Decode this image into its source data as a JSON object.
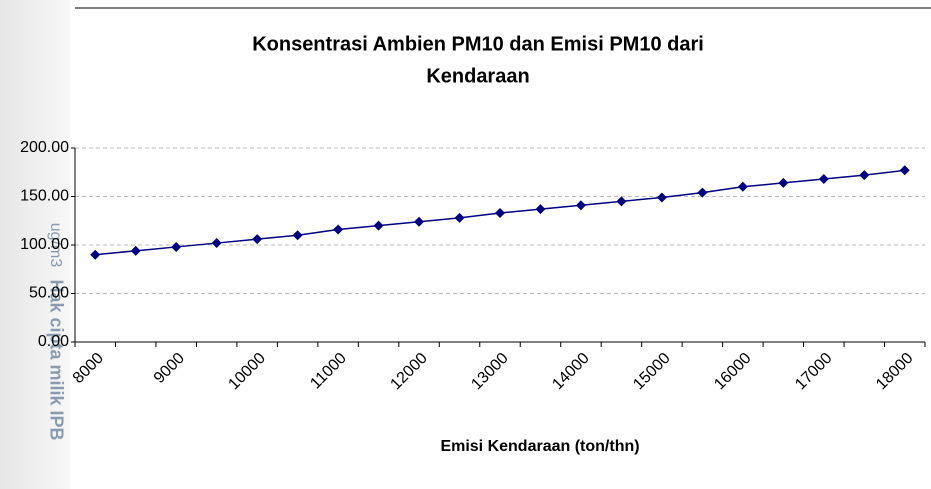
{
  "watermark": "Hak cipta milik IPB",
  "chart_data": {
    "type": "line",
    "title": [
      "Konsentrasi Ambien PM10 dan Emisi PM10 dari",
      "Kendaraan"
    ],
    "x_label": "Emisi Kendaraan (ton/thn)",
    "y_label": "ug/m3",
    "categories": [
      "8000",
      null,
      "9000",
      null,
      "10000",
      null,
      "11000",
      null,
      "12000",
      null,
      "13000",
      null,
      "14000",
      null,
      "15000",
      null,
      "16000",
      null,
      "17000",
      null,
      "18000"
    ],
    "series": [
      {
        "name": "PM10",
        "color": "#000080",
        "values": [
          90,
          94,
          98,
          102,
          106,
          110,
          116,
          120,
          124,
          128,
          133,
          137,
          141,
          145,
          149,
          154,
          160,
          164,
          168,
          172,
          177
        ]
      }
    ],
    "ylim": [
      0,
      200
    ],
    "yticks": [
      {
        "value": 0,
        "label": "0.00"
      },
      {
        "value": 50,
        "label": "50.00"
      },
      {
        "value": 100,
        "label": "100.00"
      },
      {
        "value": 150,
        "label": "150.00"
      },
      {
        "value": 200,
        "label": "200.00"
      }
    ],
    "grid": true
  }
}
